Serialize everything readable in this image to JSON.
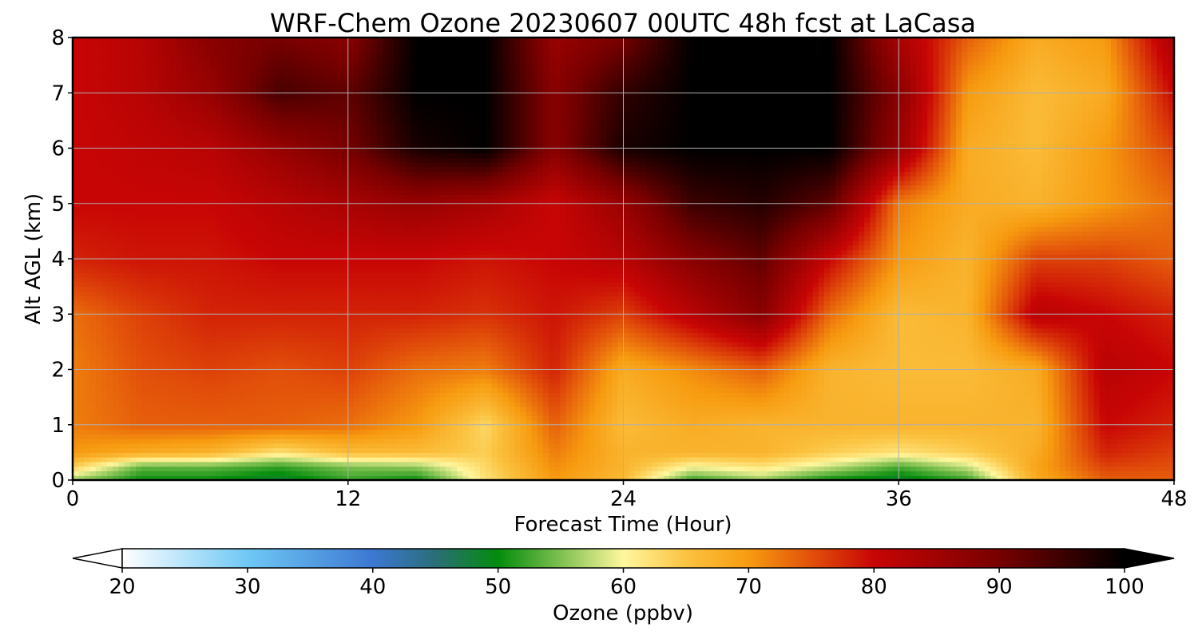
{
  "chart_data": {
    "type": "heatmap",
    "title": "WRF-Chem Ozone  20230607 00UTC 48h fcst at LaCasa",
    "xlabel": "Forecast Time (Hour)",
    "ylabel": "Alt AGL (km)",
    "xlim": [
      0,
      48
    ],
    "ylim": [
      0,
      8
    ],
    "x_ticks": [
      0,
      12,
      24,
      36,
      48
    ],
    "y_ticks": [
      0,
      1,
      2,
      3,
      4,
      5,
      6,
      7,
      8
    ],
    "grid": true,
    "x": [
      0,
      3,
      6,
      9,
      12,
      15,
      18,
      21,
      24,
      27,
      30,
      33,
      36,
      39,
      42,
      45,
      48
    ],
    "y": [
      0,
      0.25,
      0.5,
      1,
      2,
      3,
      4,
      5,
      6,
      7,
      8
    ],
    "z": [
      [
        56,
        50,
        50,
        48,
        52,
        50,
        62,
        70,
        66,
        52,
        56,
        50,
        48,
        52,
        68,
        74,
        74
      ],
      [
        64,
        54,
        54,
        52,
        55,
        56,
        63,
        71,
        67,
        60,
        62,
        58,
        53,
        58,
        69,
        76,
        75
      ],
      [
        70,
        68,
        67,
        62,
        66,
        66,
        64,
        72,
        67,
        67,
        67,
        64,
        62,
        64,
        68,
        78,
        76
      ],
      [
        72,
        74,
        74,
        74,
        73,
        70,
        63,
        74,
        66,
        68,
        67,
        67,
        67,
        67,
        67,
        80,
        78
      ],
      [
        72,
        75,
        76,
        75,
        76,
        73,
        72,
        78,
        68,
        71,
        74,
        67,
        66,
        66,
        68,
        82,
        80
      ],
      [
        73,
        76,
        78,
        78,
        78,
        78,
        77,
        79,
        76,
        82,
        88,
        73,
        66,
        67,
        82,
        80,
        78
      ],
      [
        78,
        79,
        79,
        80,
        80,
        80,
        79,
        80,
        82,
        88,
        92,
        80,
        70,
        67,
        76,
        76,
        74
      ],
      [
        80,
        80,
        80,
        82,
        84,
        86,
        84,
        80,
        86,
        95,
        97,
        92,
        72,
        68,
        67,
        70,
        73
      ],
      [
        80,
        81,
        82,
        86,
        90,
        98,
        100,
        88,
        98,
        100,
        100,
        100,
        86,
        68,
        66,
        70,
        76
      ],
      [
        80,
        82,
        86,
        94,
        92,
        100,
        100,
        88,
        96,
        100,
        100,
        100,
        88,
        70,
        66,
        68,
        80
      ],
      [
        80,
        82,
        88,
        90,
        88,
        100,
        100,
        86,
        90,
        100,
        100,
        100,
        84,
        74,
        68,
        70,
        84
      ]
    ],
    "colorbar": {
      "label": "Ozone  (ppbv)",
      "min": 20,
      "max": 100,
      "ticks": [
        "20",
        "30",
        "40",
        "50",
        "60",
        "70",
        "80",
        "90",
        "100"
      ],
      "extend": "both",
      "stops": [
        {
          "v": 20,
          "c": "#ffffff"
        },
        {
          "v": 30,
          "c": "#6fc8f5"
        },
        {
          "v": 40,
          "c": "#3c78d2"
        },
        {
          "v": 45,
          "c": "#2a6e78"
        },
        {
          "v": 50,
          "c": "#048c0c"
        },
        {
          "v": 55,
          "c": "#7ec050"
        },
        {
          "v": 60,
          "c": "#fff79e"
        },
        {
          "v": 65,
          "c": "#fbc341"
        },
        {
          "v": 70,
          "c": "#f79b10"
        },
        {
          "v": 75,
          "c": "#e2500a"
        },
        {
          "v": 80,
          "c": "#c80505"
        },
        {
          "v": 90,
          "c": "#780000"
        },
        {
          "v": 100,
          "c": "#000000"
        }
      ]
    }
  }
}
